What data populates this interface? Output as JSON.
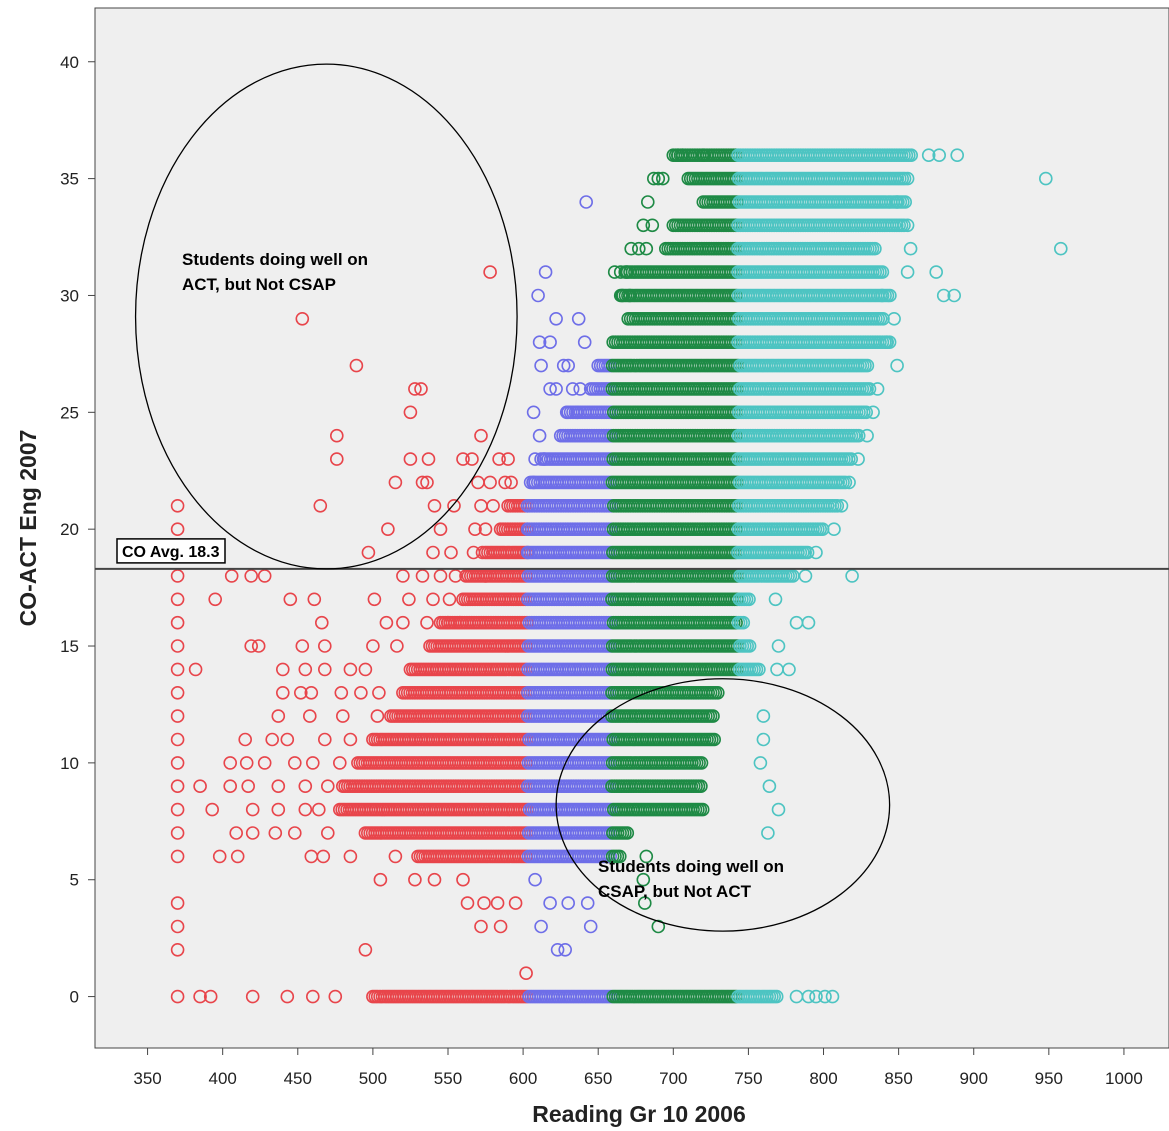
{
  "chart_data": {
    "type": "scatter",
    "title": "",
    "xlabel": "Reading Gr 10 2006",
    "ylabel": "CO-ACT Eng 2007",
    "xlim": [
      315,
      1030
    ],
    "ylim": [
      -2.2,
      42.3
    ],
    "x_ticks": [
      350,
      400,
      450,
      500,
      550,
      600,
      650,
      700,
      750,
      800,
      850,
      900,
      950,
      1000
    ],
    "y_ticks": [
      0,
      5,
      10,
      15,
      20,
      25,
      30,
      35,
      40
    ],
    "grid": false,
    "marker": "open-circle",
    "colors": {
      "background": "#efefef",
      "red": "#e8454b",
      "blue": "#6e6ee8",
      "green": "#1e8a45",
      "cyan": "#4dc4c2"
    },
    "color_bands": [
      {
        "color": "red",
        "x_from": 350,
        "x_to": 603
      },
      {
        "color": "blue",
        "x_from": 603,
        "x_to": 659
      },
      {
        "color": "green",
        "x_from": 659,
        "x_to": 743
      },
      {
        "color": "cyan",
        "x_from": 743,
        "x_to": 1000
      }
    ],
    "row_ranges": [
      {
        "y": 36,
        "x_min": 700,
        "x_max": 860
      },
      {
        "y": 35,
        "x_min": 710,
        "x_max": 855
      },
      {
        "y": 34,
        "x_min": 720,
        "x_max": 855
      },
      {
        "y": 33,
        "x_min": 700,
        "x_max": 855
      },
      {
        "y": 32,
        "x_min": 695,
        "x_max": 835
      },
      {
        "y": 31,
        "x_min": 668,
        "x_max": 840
      },
      {
        "y": 30,
        "x_min": 665,
        "x_max": 845
      },
      {
        "y": 29,
        "x_min": 670,
        "x_max": 840
      },
      {
        "y": 28,
        "x_min": 660,
        "x_max": 845
      },
      {
        "y": 27,
        "x_min": 650,
        "x_max": 830
      },
      {
        "y": 26,
        "x_min": 645,
        "x_max": 832
      },
      {
        "y": 25,
        "x_min": 630,
        "x_max": 830
      },
      {
        "y": 24,
        "x_min": 625,
        "x_max": 825
      },
      {
        "y": 23,
        "x_min": 612,
        "x_max": 820
      },
      {
        "y": 22,
        "x_min": 605,
        "x_max": 815
      },
      {
        "y": 21,
        "x_min": 590,
        "x_max": 810
      },
      {
        "y": 20,
        "x_min": 585,
        "x_max": 800
      },
      {
        "y": 19,
        "x_min": 575,
        "x_max": 790
      },
      {
        "y": 18,
        "x_min": 562,
        "x_max": 780
      },
      {
        "y": 17,
        "x_min": 560,
        "x_max": 752
      },
      {
        "y": 16,
        "x_min": 545,
        "x_max": 748
      },
      {
        "y": 15,
        "x_min": 538,
        "x_max": 752
      },
      {
        "y": 14,
        "x_min": 525,
        "x_max": 758
      },
      {
        "y": 13,
        "x_min": 520,
        "x_max": 730
      },
      {
        "y": 12,
        "x_min": 512,
        "x_max": 728
      },
      {
        "y": 11,
        "x_min": 500,
        "x_max": 728
      },
      {
        "y": 10,
        "x_min": 490,
        "x_max": 720
      },
      {
        "y": 9,
        "x_min": 480,
        "x_max": 720
      },
      {
        "y": 8,
        "x_min": 478,
        "x_max": 720
      },
      {
        "y": 7,
        "x_min": 495,
        "x_max": 670
      },
      {
        "y": 6,
        "x_min": 530,
        "x_max": 665
      },
      {
        "y": 0,
        "x_min": 500,
        "x_max": 770
      }
    ],
    "points": [
      [
        370,
        21
      ],
      [
        370,
        20
      ],
      [
        370,
        19
      ],
      [
        370,
        18
      ],
      [
        370,
        17
      ],
      [
        370,
        16
      ],
      [
        370,
        15
      ],
      [
        370,
        14
      ],
      [
        370,
        13
      ],
      [
        370,
        12
      ],
      [
        370,
        11
      ],
      [
        370,
        10
      ],
      [
        370,
        9
      ],
      [
        370,
        8
      ],
      [
        370,
        7
      ],
      [
        370,
        6
      ],
      [
        370,
        4
      ],
      [
        370,
        3
      ],
      [
        370,
        2
      ],
      [
        370,
        0
      ],
      [
        453,
        29
      ],
      [
        489,
        27
      ],
      [
        528,
        26
      ],
      [
        532,
        26
      ],
      [
        525,
        25
      ],
      [
        578,
        31
      ],
      [
        476,
        24
      ],
      [
        572,
        24
      ],
      [
        476,
        23
      ],
      [
        525,
        23
      ],
      [
        537,
        23
      ],
      [
        560,
        23
      ],
      [
        566,
        23
      ],
      [
        584,
        23
      ],
      [
        590,
        23
      ],
      [
        515,
        22
      ],
      [
        533,
        22
      ],
      [
        536,
        22
      ],
      [
        570,
        22
      ],
      [
        578,
        22
      ],
      [
        588,
        22
      ],
      [
        592,
        22
      ],
      [
        465,
        21
      ],
      [
        541,
        21
      ],
      [
        554,
        21
      ],
      [
        572,
        21
      ],
      [
        580,
        21
      ],
      [
        510,
        20
      ],
      [
        545,
        20
      ],
      [
        568,
        20
      ],
      [
        575,
        20
      ],
      [
        497,
        19
      ],
      [
        540,
        19
      ],
      [
        552,
        19
      ],
      [
        567,
        19
      ],
      [
        573,
        19
      ],
      [
        406,
        18
      ],
      [
        419,
        18
      ],
      [
        428,
        18
      ],
      [
        520,
        18
      ],
      [
        533,
        18
      ],
      [
        545,
        18
      ],
      [
        555,
        18
      ],
      [
        575,
        18
      ],
      [
        395,
        17
      ],
      [
        445,
        17
      ],
      [
        461,
        17
      ],
      [
        501,
        17
      ],
      [
        524,
        17
      ],
      [
        540,
        17
      ],
      [
        551,
        17
      ],
      [
        466,
        16
      ],
      [
        509,
        16
      ],
      [
        520,
        16
      ],
      [
        536,
        16
      ],
      [
        550,
        16
      ],
      [
        558,
        16
      ],
      [
        419,
        15
      ],
      [
        424,
        15
      ],
      [
        453,
        15
      ],
      [
        468,
        15
      ],
      [
        500,
        15
      ],
      [
        516,
        15
      ],
      [
        382,
        14
      ],
      [
        440,
        14
      ],
      [
        455,
        14
      ],
      [
        468,
        14
      ],
      [
        485,
        14
      ],
      [
        495,
        14
      ],
      [
        440,
        13
      ],
      [
        452,
        13
      ],
      [
        459,
        13
      ],
      [
        479,
        13
      ],
      [
        492,
        13
      ],
      [
        504,
        13
      ],
      [
        437,
        12
      ],
      [
        458,
        12
      ],
      [
        480,
        12
      ],
      [
        503,
        12
      ],
      [
        415,
        11
      ],
      [
        433,
        11
      ],
      [
        443,
        11
      ],
      [
        468,
        11
      ],
      [
        485,
        11
      ],
      [
        405,
        10
      ],
      [
        416,
        10
      ],
      [
        428,
        10
      ],
      [
        448,
        10
      ],
      [
        460,
        10
      ],
      [
        478,
        10
      ],
      [
        385,
        9
      ],
      [
        405,
        9
      ],
      [
        417,
        9
      ],
      [
        437,
        9
      ],
      [
        455,
        9
      ],
      [
        470,
        9
      ],
      [
        393,
        8
      ],
      [
        420,
        8
      ],
      [
        437,
        8
      ],
      [
        455,
        8
      ],
      [
        464,
        8
      ],
      [
        409,
        7
      ],
      [
        420,
        7
      ],
      [
        435,
        7
      ],
      [
        448,
        7
      ],
      [
        470,
        7
      ],
      [
        398,
        6
      ],
      [
        410,
        6
      ],
      [
        459,
        6
      ],
      [
        467,
        6
      ],
      [
        485,
        6
      ],
      [
        515,
        6
      ],
      [
        505,
        5
      ],
      [
        528,
        5
      ],
      [
        541,
        5
      ],
      [
        560,
        5
      ],
      [
        563,
        4
      ],
      [
        574,
        4
      ],
      [
        583,
        4
      ],
      [
        595,
        4
      ],
      [
        572,
        3
      ],
      [
        585,
        3
      ],
      [
        495,
        2
      ],
      [
        602,
        1
      ],
      [
        385,
        0
      ],
      [
        392,
        0
      ],
      [
        420,
        0
      ],
      [
        443,
        0
      ],
      [
        460,
        0
      ],
      [
        475,
        0
      ],
      [
        642,
        34
      ],
      [
        615,
        31
      ],
      [
        610,
        30
      ],
      [
        622,
        29
      ],
      [
        637,
        29
      ],
      [
        611,
        28
      ],
      [
        618,
        28
      ],
      [
        641,
        28
      ],
      [
        612,
        27
      ],
      [
        627,
        27
      ],
      [
        630,
        27
      ],
      [
        618,
        26
      ],
      [
        622,
        26
      ],
      [
        633,
        26
      ],
      [
        638,
        26
      ],
      [
        607,
        25
      ],
      [
        629,
        25
      ],
      [
        636,
        25
      ],
      [
        611,
        24
      ],
      [
        608,
        23
      ],
      [
        614,
        23
      ],
      [
        607,
        22
      ],
      [
        603,
        21
      ],
      [
        603,
        20
      ],
      [
        603,
        19
      ],
      [
        608,
        5
      ],
      [
        618,
        4
      ],
      [
        630,
        4
      ],
      [
        643,
        4
      ],
      [
        612,
        3
      ],
      [
        645,
        3
      ],
      [
        623,
        2
      ],
      [
        628,
        2
      ],
      [
        703,
        36
      ],
      [
        706,
        36
      ],
      [
        720,
        36
      ],
      [
        687,
        35
      ],
      [
        690,
        35
      ],
      [
        693,
        35
      ],
      [
        683,
        34
      ],
      [
        680,
        33
      ],
      [
        686,
        33
      ],
      [
        672,
        32
      ],
      [
        677,
        32
      ],
      [
        682,
        32
      ],
      [
        661,
        31
      ],
      [
        665,
        31
      ],
      [
        669,
        31
      ],
      [
        666,
        30
      ],
      [
        671,
        30
      ],
      [
        682,
        6
      ],
      [
        690,
        3
      ],
      [
        681,
        4
      ],
      [
        680,
        5
      ],
      [
        870,
        36
      ],
      [
        877,
        36
      ],
      [
        889,
        36
      ],
      [
        856,
        35
      ],
      [
        849,
        34
      ],
      [
        856,
        33
      ],
      [
        858,
        32
      ],
      [
        856,
        31
      ],
      [
        839,
        30
      ],
      [
        847,
        29
      ],
      [
        842,
        28
      ],
      [
        849,
        27
      ],
      [
        836,
        26
      ],
      [
        833,
        25
      ],
      [
        829,
        24
      ],
      [
        823,
        23
      ],
      [
        817,
        22
      ],
      [
        812,
        21
      ],
      [
        807,
        20
      ],
      [
        795,
        19
      ],
      [
        788,
        18
      ],
      [
        819,
        18
      ],
      [
        768,
        17
      ],
      [
        782,
        16
      ],
      [
        790,
        16
      ],
      [
        770,
        15
      ],
      [
        777,
        14
      ],
      [
        769,
        14
      ],
      [
        760,
        12
      ],
      [
        760,
        11
      ],
      [
        758,
        10
      ],
      [
        764,
        9
      ],
      [
        770,
        8
      ],
      [
        763,
        7
      ],
      [
        948,
        35
      ],
      [
        958,
        32
      ],
      [
        875,
        31
      ],
      [
        880,
        30
      ],
      [
        887,
        30
      ],
      [
        782,
        0
      ],
      [
        790,
        0
      ],
      [
        795,
        0
      ],
      [
        801,
        0
      ],
      [
        806,
        0
      ]
    ],
    "reference_line": {
      "y": 18.3,
      "label": "CO Avg. 18.3"
    },
    "annotations": [
      {
        "text_lines": [
          "Students doing well on",
          "ACT, but Not CSAP"
        ],
        "cx": 469,
        "cy": 29.1,
        "rx": 127,
        "ry": 10.8
      },
      {
        "text_lines": [
          "Students doing well on",
          "CSAP, but Not ACT"
        ],
        "cx": 733,
        "cy": 8.2,
        "rx": 111,
        "ry": 5.4
      }
    ]
  }
}
